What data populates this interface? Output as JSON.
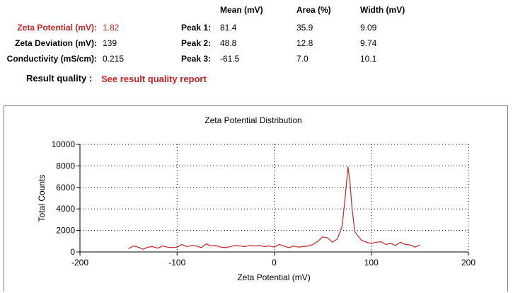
{
  "summary": {
    "zeta_potential_label": "Zeta Potential (mV):",
    "zeta_potential_value": "1.82",
    "zeta_deviation_label": "Zeta Deviation (mV):",
    "zeta_deviation_value": "139",
    "conductivity_label": "Conductivity (mS/cm):",
    "conductivity_value": "0.215"
  },
  "peaks_table": {
    "headers": [
      "Mean (mV)",
      "Area (%)",
      "Width (mV)"
    ],
    "rows": [
      {
        "label": "Peak 1:",
        "mean": "81.4",
        "area": "35.9",
        "width": "9.09"
      },
      {
        "label": "Peak 2:",
        "mean": "48.8",
        "area": "12.8",
        "width": "9.74"
      },
      {
        "label": "Peak 3:",
        "mean": "-61.5",
        "area": "7.0",
        "width": "10.1"
      }
    ]
  },
  "result_quality": {
    "label": "Result quality :",
    "link_text": "See result quality report"
  },
  "colors": {
    "highlight": "#cc2222",
    "line": "#cc2222"
  },
  "chart_data": {
    "type": "line",
    "title": "Zeta Potential Distribution",
    "xlabel": "Zeta Potential (mV)",
    "ylabel": "Total Counts",
    "xlim": [
      -200,
      200
    ],
    "ylim": [
      0,
      10000
    ],
    "xticks": [
      -200,
      -100,
      0,
      100,
      200
    ],
    "yticks": [
      0,
      2000,
      4000,
      6000,
      8000,
      10000
    ],
    "grid": true,
    "series": [
      {
        "color": "#cc2222",
        "x": [
          -150,
          -145,
          -140,
          -135,
          -130,
          -125,
          -120,
          -115,
          -110,
          -105,
          -100,
          -95,
          -90,
          -85,
          -80,
          -75,
          -70,
          -65,
          -60,
          -55,
          -50,
          -45,
          -40,
          -35,
          -30,
          -25,
          -20,
          -15,
          -10,
          -5,
          0,
          5,
          10,
          15,
          20,
          25,
          30,
          35,
          40,
          45,
          50,
          55,
          60,
          65,
          70,
          73,
          76,
          78,
          80,
          83,
          86,
          90,
          95,
          100,
          105,
          110,
          115,
          120,
          125,
          130,
          135,
          140,
          145,
          150
        ],
        "y": [
          300,
          550,
          450,
          250,
          450,
          500,
          350,
          550,
          450,
          400,
          450,
          700,
          500,
          600,
          550,
          400,
          750,
          550,
          600,
          450,
          400,
          500,
          600,
          550,
          500,
          600,
          550,
          600,
          500,
          550,
          450,
          700,
          550,
          400,
          550,
          450,
          500,
          550,
          700,
          1000,
          1400,
          1300,
          900,
          1200,
          2400,
          5000,
          7900,
          6500,
          4200,
          1900,
          1500,
          1100,
          900,
          800,
          900,
          950,
          700,
          800,
          600,
          900,
          700,
          650,
          450,
          650
        ]
      }
    ]
  }
}
